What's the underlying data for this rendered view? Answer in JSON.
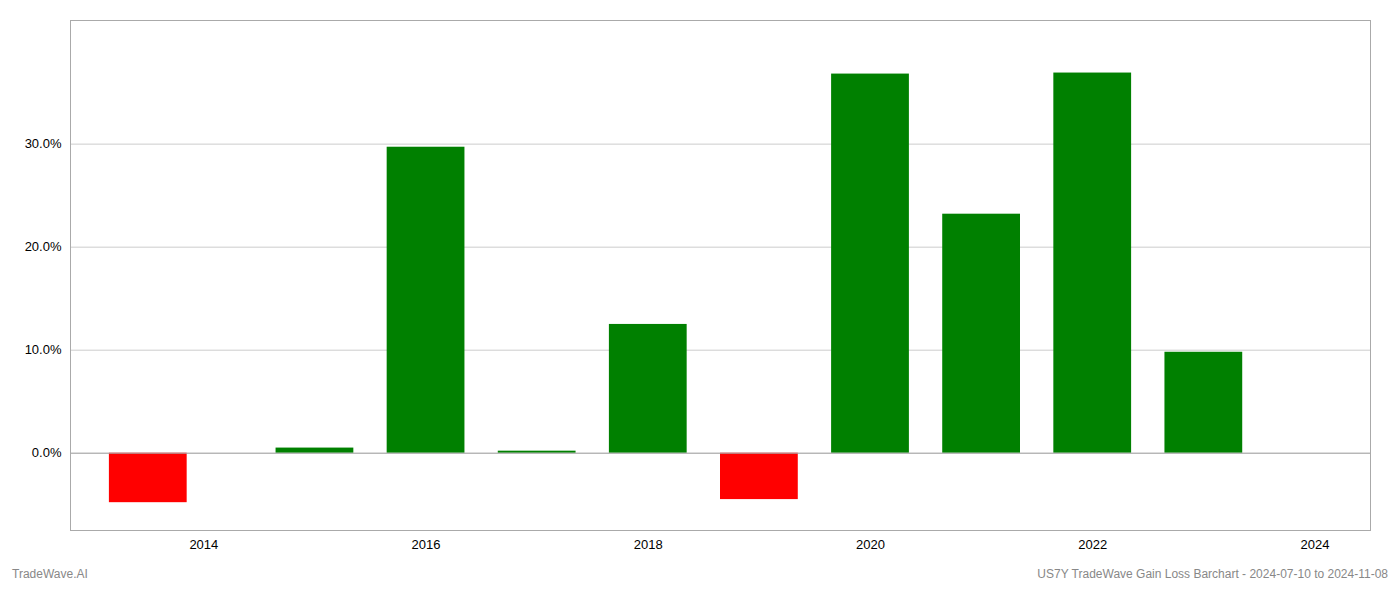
{
  "chart_data": {
    "type": "bar",
    "x": [
      2013.5,
      2015.0,
      2016.0,
      2017.0,
      2018.0,
      2019.0,
      2020.0,
      2021.0,
      2022.0,
      2023.0
    ],
    "values": [
      -4.8,
      0.5,
      29.7,
      0.2,
      12.5,
      -4.5,
      36.8,
      23.2,
      36.9,
      9.8
    ],
    "colors": [
      "#ff0000",
      "#008000",
      "#008000",
      "#008000",
      "#008000",
      "#ff0000",
      "#008000",
      "#008000",
      "#008000",
      "#008000"
    ],
    "xlim": [
      2012.8,
      2024.5
    ],
    "xticks": [
      2014,
      2016,
      2018,
      2020,
      2022,
      2024
    ],
    "ylim": [
      -7.5,
      42.0
    ],
    "yticks": [
      {
        "value": 0.0,
        "label": "0.0%"
      },
      {
        "value": 10.0,
        "label": "10.0%"
      },
      {
        "value": 20.0,
        "label": "20.0%"
      },
      {
        "value": 30.0,
        "label": "30.0%"
      }
    ],
    "grid": true,
    "annotations": [
      "TradeWave.AI",
      "US7Y TradeWave Gain Loss Barchart - 2024-07-10 to 2024-11-08"
    ]
  }
}
